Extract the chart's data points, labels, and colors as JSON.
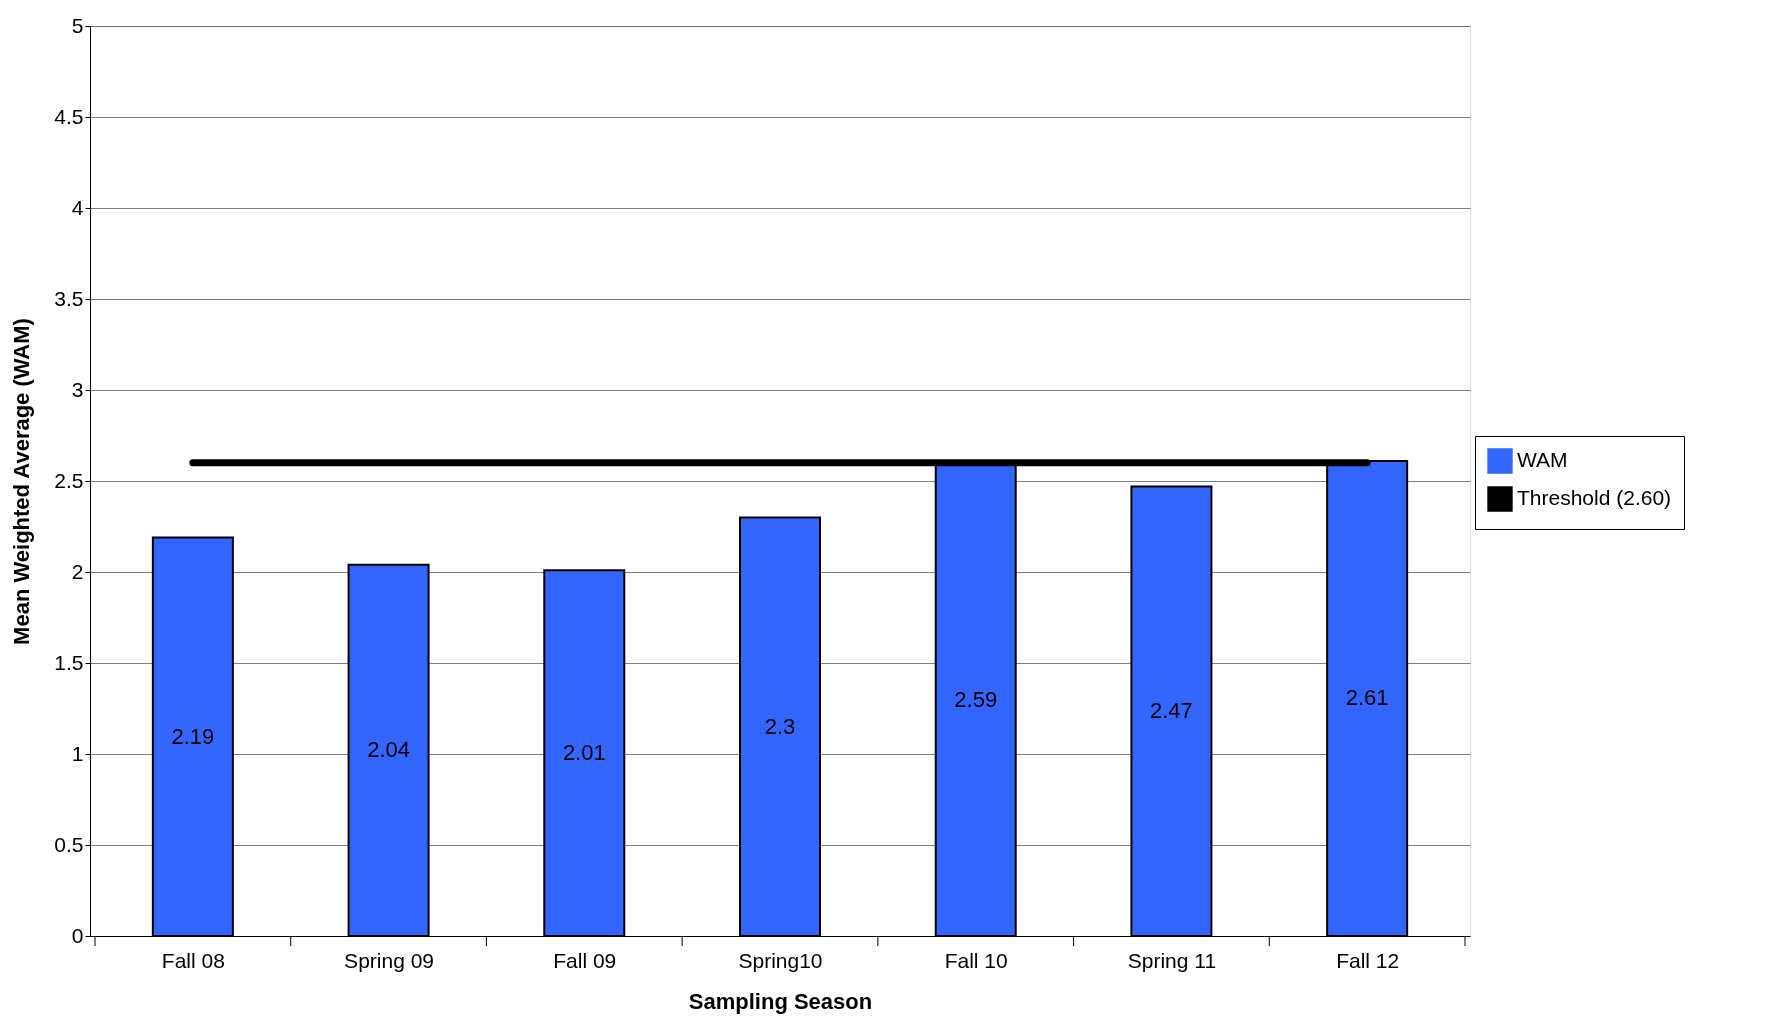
{
  "chart_data": {
    "type": "bar",
    "xlabel": "Sampling Season",
    "ylabel": "Mean Weighted Average (WAM)",
    "categories": [
      "Fall 08",
      "Spring 09",
      "Fall 09",
      "Spring10",
      "Fall 10",
      "Spring 11",
      "Fall 12"
    ],
    "series": [
      {
        "name": "WAM",
        "color": "#3366ff",
        "values": [
          2.19,
          2.04,
          2.01,
          2.3,
          2.59,
          2.47,
          2.61
        ],
        "value_labels": [
          "2.19",
          "2.04",
          "2.01",
          "2.3",
          "2.59",
          "2.47",
          "2.61"
        ]
      },
      {
        "name": "Threshold (2.60)",
        "type": "line",
        "color": "#000000",
        "values": [
          2.6,
          2.6,
          2.6,
          2.6,
          2.6,
          2.6,
          2.6
        ]
      }
    ],
    "ylim": [
      0,
      5
    ],
    "yticks": [
      0,
      0.5,
      1,
      1.5,
      2,
      2.5,
      3,
      3.5,
      4,
      4.5,
      5
    ],
    "grid": "y",
    "legend": "right"
  }
}
